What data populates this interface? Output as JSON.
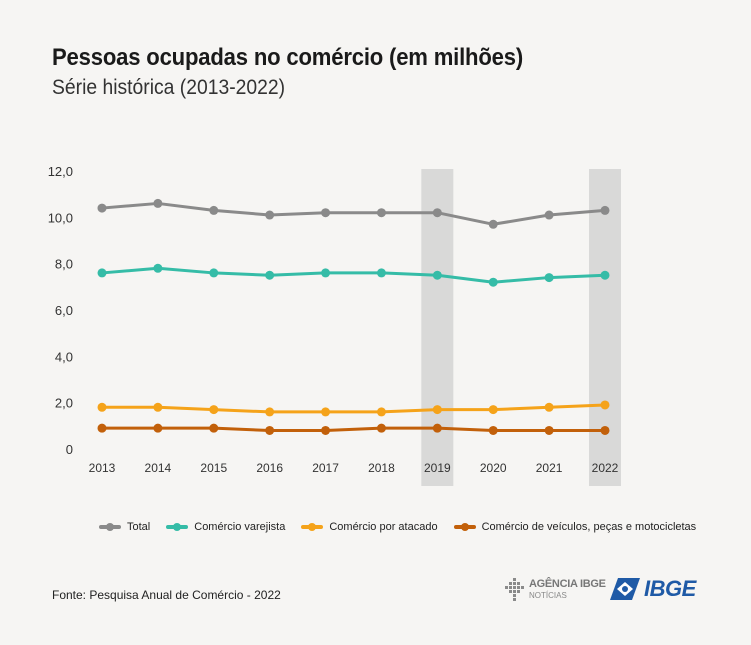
{
  "header": {
    "title": "Pessoas ocupadas no comércio (em milhões)",
    "subtitle": "Série histórica (2013-2022)"
  },
  "footer": {
    "source": "Fonte: Pesquisa Anual de Comércio - 2022",
    "agencia_name": "AGÊNCIA IBGE",
    "agencia_sub": "NOTÍCIAS",
    "ibge_logo": "IBGE"
  },
  "chart_data": {
    "type": "line",
    "title": "Pessoas ocupadas no comércio (em milhões)",
    "subtitle": "Série histórica (2013-2022)",
    "x": [
      "2013",
      "2014",
      "2015",
      "2016",
      "2017",
      "2018",
      "2019",
      "2020",
      "2021",
      "2022"
    ],
    "y_ticks": [
      "12,0",
      "10,0",
      "8,0",
      "6,0",
      "4,0",
      "2,0",
      "0"
    ],
    "y_tick_values": [
      12,
      10,
      8,
      6,
      4,
      2,
      0
    ],
    "ylim": [
      0,
      12
    ],
    "grid": false,
    "highlighted_x": [
      "2019",
      "2022"
    ],
    "highlight_color": "#d9d9d8",
    "legend_position": "bottom",
    "series": [
      {
        "name": "Total",
        "color": "#8a8a8a",
        "values": [
          10.4,
          10.6,
          10.3,
          10.1,
          10.2,
          10.2,
          10.2,
          9.7,
          10.1,
          10.3
        ]
      },
      {
        "name": "Comércio varejista",
        "color": "#35bca7",
        "values": [
          7.6,
          7.8,
          7.6,
          7.5,
          7.6,
          7.6,
          7.5,
          7.2,
          7.4,
          7.5
        ]
      },
      {
        "name": "Comércio por atacado",
        "color": "#f5a31a",
        "values": [
          1.8,
          1.8,
          1.7,
          1.6,
          1.6,
          1.6,
          1.7,
          1.7,
          1.8,
          1.9
        ]
      },
      {
        "name": "Comércio de veículos, peças e motocicletas",
        "color": "#c2600a",
        "values": [
          0.9,
          0.9,
          0.9,
          0.8,
          0.8,
          0.9,
          0.9,
          0.8,
          0.8,
          0.8
        ]
      }
    ]
  }
}
